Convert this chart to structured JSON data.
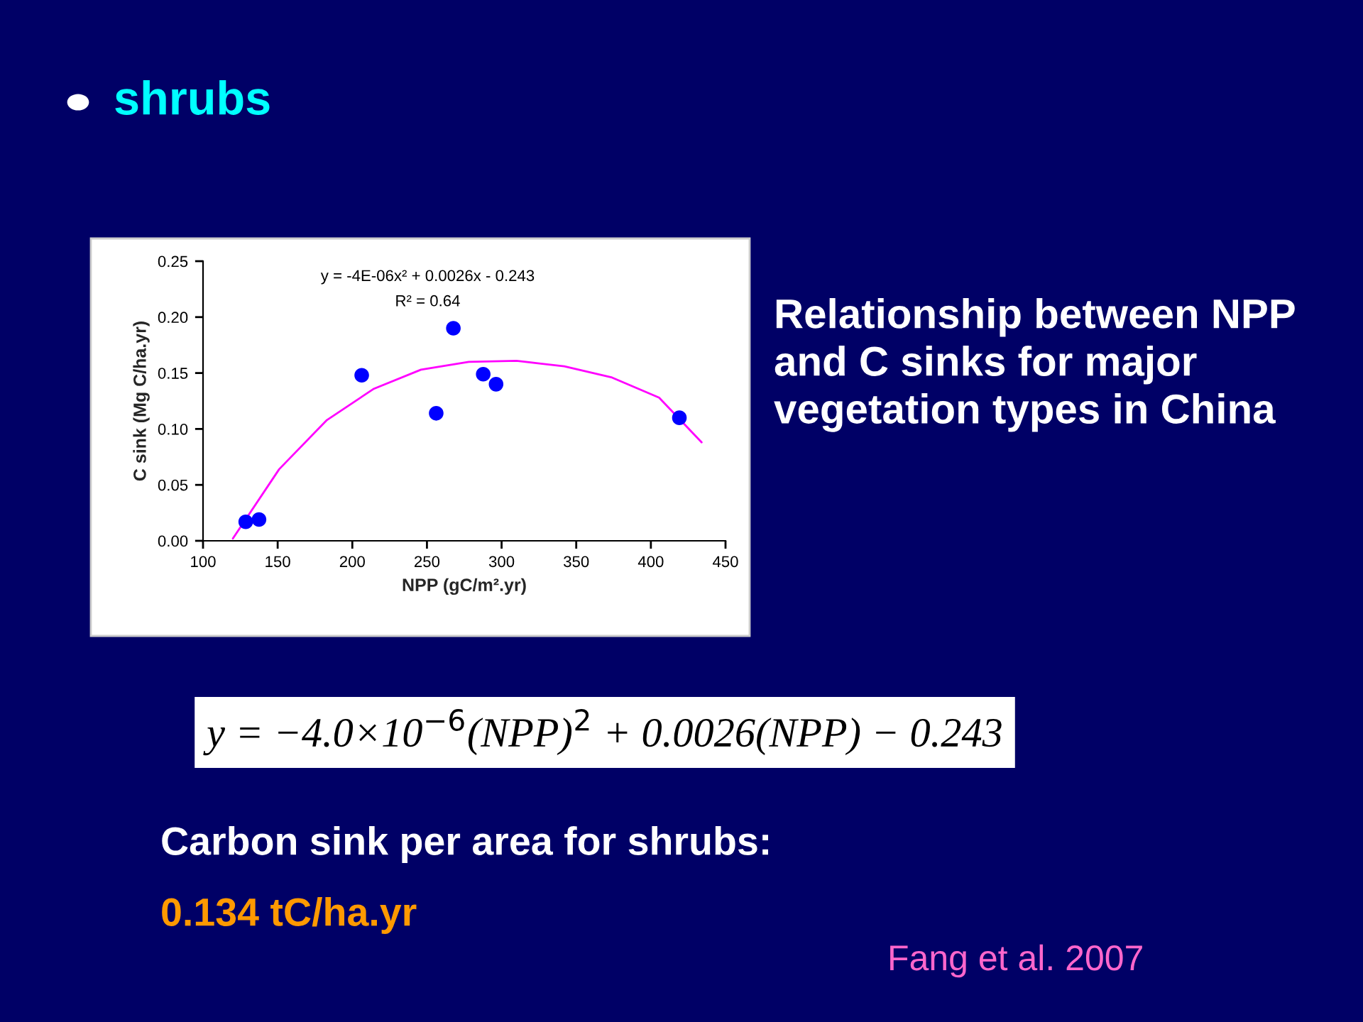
{
  "chart_data": {
    "type": "scatter",
    "title": "shrubs",
    "subtitle": "Relationship between NPP and C sinks for major vegetation types in China",
    "xlabel": "NPP (gC/m².yr)",
    "ylabel": "C sink (Mg C/ha.yr)",
    "series": [
      {
        "color": "#0000ff",
        "marker": "circle",
        "x": [
          128.6,
          137.5,
          206.3,
          256.2,
          267.7,
          287.7,
          296.3,
          419.1
        ],
        "values": [
          0.017,
          0.019,
          0.148,
          0.114,
          0.19,
          0.149,
          0.14,
          0.11
        ]
      },
      {
        "type": "line",
        "color": "#ff00ff",
        "line_style": "solid",
        "x": [
          120,
          151,
          183,
          214.5,
          246,
          278,
          310,
          342,
          374,
          405.5,
          434
        ],
        "values": [
          0.002,
          0.064,
          0.108,
          0.136,
          0.153,
          0.16,
          0.161,
          0.156,
          0.146,
          0.128,
          0.088
        ]
      }
    ],
    "xlim": [
      100,
      450
    ],
    "xticks": [
      100,
      150,
      200,
      250,
      300,
      350,
      400,
      450
    ],
    "ylim": [
      0,
      0.25
    ],
    "yticks": [
      {
        "value": 0,
        "label": "0.00"
      },
      {
        "value": 0.05,
        "label": "0.05"
      },
      {
        "value": 0.1,
        "label": "0.10"
      },
      {
        "value": 0.15,
        "label": "0.15"
      },
      {
        "value": 0.2,
        "label": "0.20"
      },
      {
        "value": 0.25,
        "label": "0.25"
      }
    ],
    "grid": false,
    "legend": false,
    "annotations": [
      "y = -4E-06x² + 0.0026x - 0.243",
      "R² = 0.64",
      "y = −4.0×10$^{−6}$(NPP)$^{2}$ + 0.0026(NPP) − 0.243",
      "Carbon sink per area for shrubs:",
      "0.134 tC/ha.yr",
      "Fang et al. 2007"
    ]
  }
}
